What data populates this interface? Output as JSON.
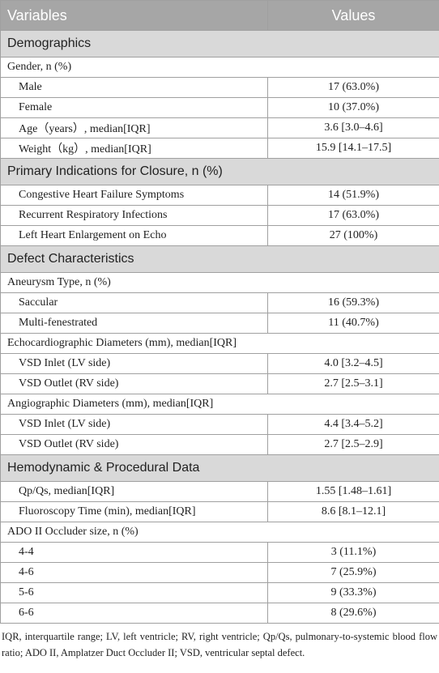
{
  "header": [
    "Variables",
    "Values"
  ],
  "sections": [
    {
      "title": "Demographics",
      "rows": [
        {
          "label": "Gender, n (%)"
        },
        {
          "label": "Male",
          "value": "17 (63.0%)"
        },
        {
          "label": "Female",
          "value": "10 (37.0%)"
        },
        {
          "label": "Age（years）, median[IQR]",
          "value": "3.6 [3.0–4.6]"
        },
        {
          "label": "Weight（kg）, median[IQR]",
          "value": "15.9 [14.1–17.5]"
        }
      ]
    },
    {
      "title": "Primary Indications for Closure, n (%)",
      "rows": [
        {
          "label": "Congestive Heart Failure Symptoms",
          "value": "14 (51.9%)"
        },
        {
          "label": "Recurrent Respiratory Infections",
          "value": "17 (63.0%)"
        },
        {
          "label": "Left Heart Enlargement on Echo",
          "value": "27 (100%)"
        }
      ]
    },
    {
      "title": "Defect Characteristics",
      "rows": [
        {
          "label": "Aneurysm Type, n (%)"
        },
        {
          "label": "Saccular",
          "value": "16 (59.3%)"
        },
        {
          "label": "Multi-fenestrated",
          "value": "11 (40.7%)"
        },
        {
          "label": "Echocardiographic Diameters (mm), median[IQR]"
        },
        {
          "label": "VSD Inlet (LV side)",
          "value": "4.0 [3.2–4.5]"
        },
        {
          "label": "VSD Outlet (RV side)",
          "value": "2.7 [2.5–3.1]"
        },
        {
          "label": "Angiographic Diameters (mm), median[IQR]"
        },
        {
          "label": "VSD Inlet (LV side)",
          "value": "4.4 [3.4–5.2]"
        },
        {
          "label": "VSD Outlet (RV side)",
          "value": "2.7 [2.5–2.9]"
        }
      ]
    },
    {
      "title": "Hemodynamic & Procedural Data",
      "rows": [
        {
          "label": "Qp/Qs, median[IQR]",
          "value": "1.55 [1.48–1.61]"
        },
        {
          "label": "Fluoroscopy Time (min), median[IQR]",
          "value": "8.6 [8.1–12.1]"
        },
        {
          "label": "ADO II Occluder size, n (%)"
        },
        {
          "label": "4-4",
          "value": "3 (11.1%)"
        },
        {
          "label": "4-6",
          "value": "7 (25.9%)"
        },
        {
          "label": "5-6",
          "value": "9 (33.3%)"
        },
        {
          "label": "6-6",
          "value": "8 (29.6%)"
        }
      ]
    }
  ],
  "footnote": "IQR, interquartile range; LV, left ventricle; RV, right ventricle; Qp/Qs, pulmonary-to-systemic blood flow ratio; ADO II, Amplatzer Duct Occluder II; VSD, ventricular septal defect."
}
